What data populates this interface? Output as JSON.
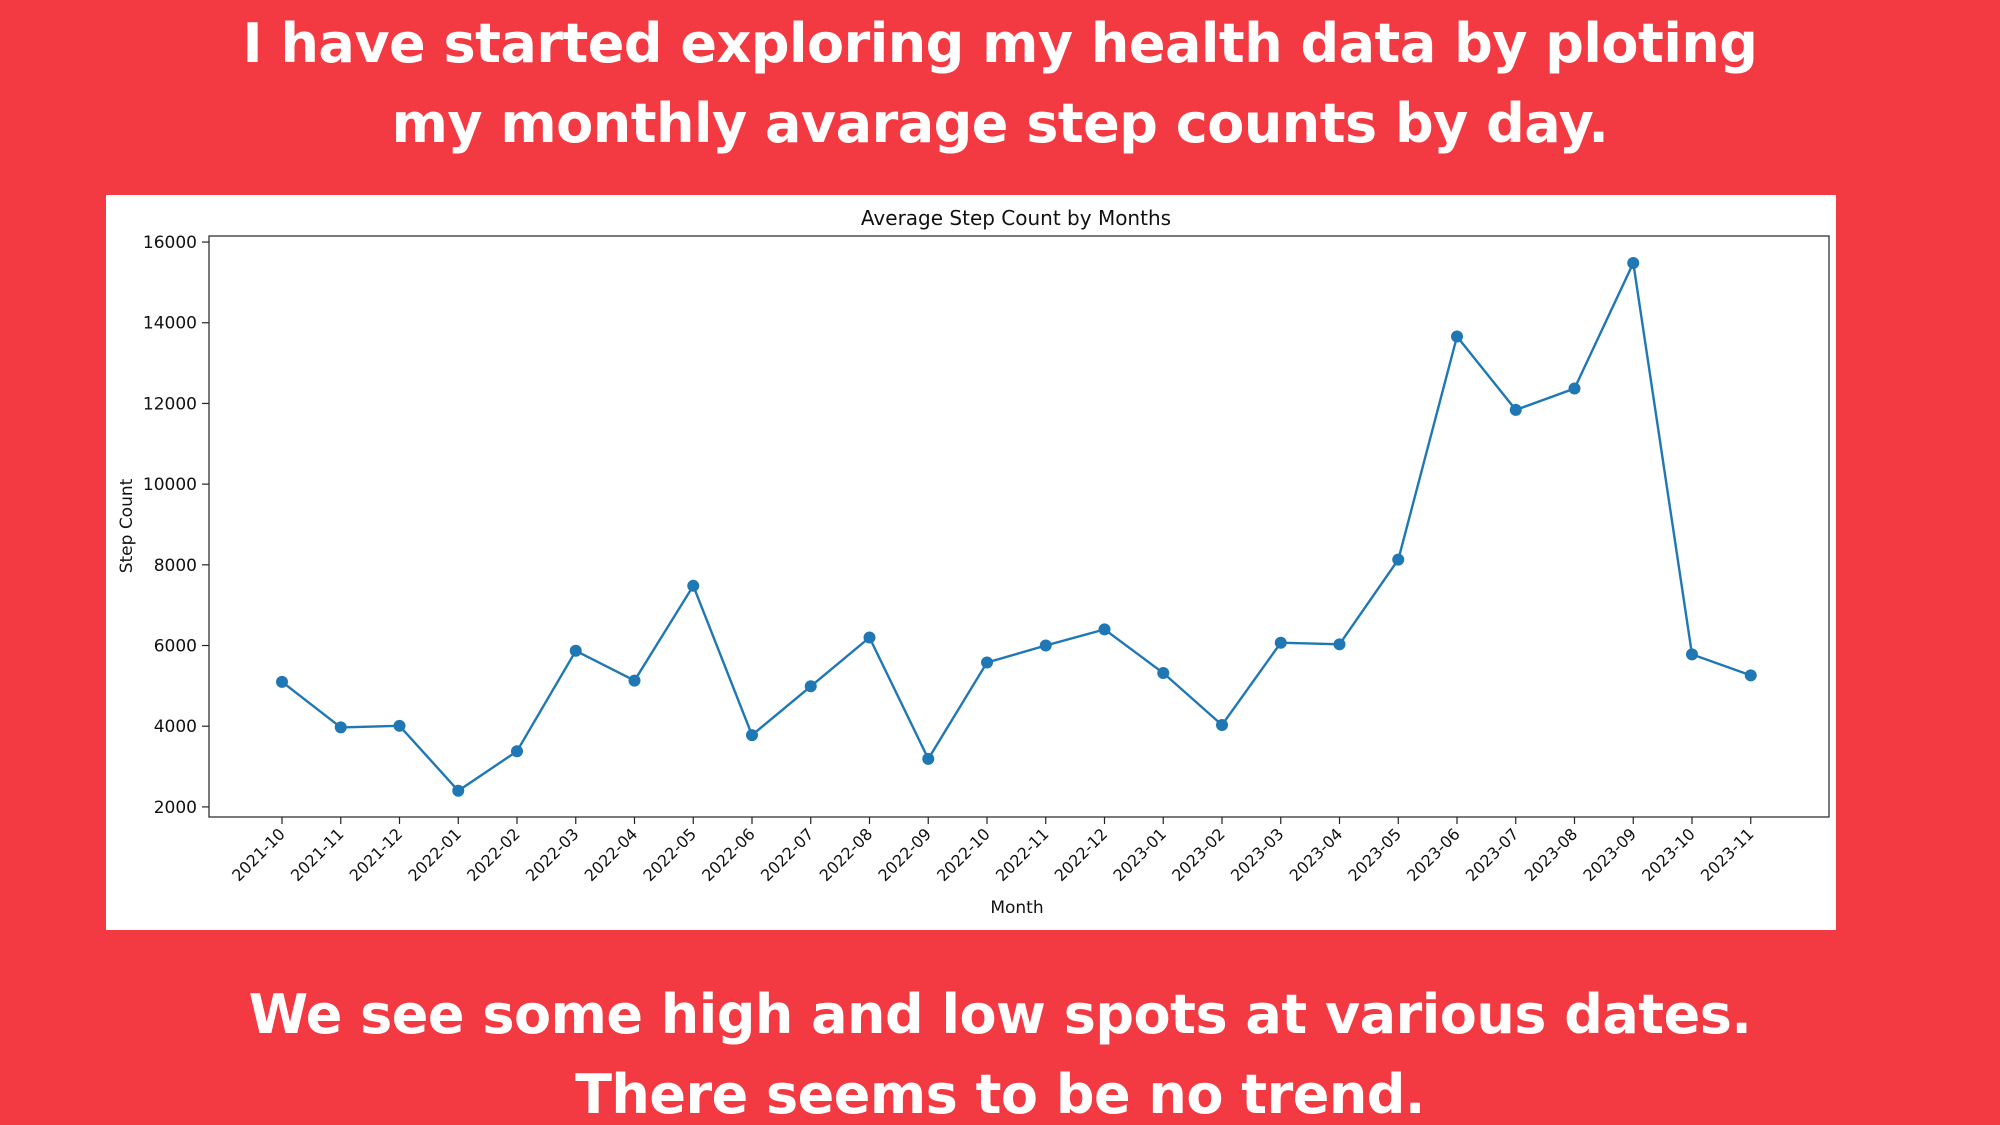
{
  "headline_top": {
    "line1": "I have started exploring my health data by ploting",
    "line2": "my monthly avarage step counts by day."
  },
  "headline_bottom": {
    "line1": "We see some high and low spots at various dates.",
    "line2": "There seems to be no trend."
  },
  "colors": {
    "background": "#f33a42",
    "headline_text": "#ffffff",
    "chart_panel": "#ffffff",
    "series_line": "#1f77b4"
  },
  "chart_data": {
    "type": "line",
    "title": "Average Step Count by Months",
    "xlabel": "Month",
    "ylabel": "Step Count",
    "categories": [
      "2021-10",
      "2021-11",
      "2021-12",
      "2022-01",
      "2022-02",
      "2022-03",
      "2022-04",
      "2022-05",
      "2022-06",
      "2022-07",
      "2022-08",
      "2022-09",
      "2022-10",
      "2022-11",
      "2022-12",
      "2023-01",
      "2023-02",
      "2023-03",
      "2023-04",
      "2023-05",
      "2023-06",
      "2023-07",
      "2023-08",
      "2023-09",
      "2023-10",
      "2023-11"
    ],
    "series": [
      {
        "values": [
          5100,
          3970,
          4010,
          2400,
          3380,
          5870,
          5130,
          7480,
          3780,
          4990,
          6200,
          3190,
          5580,
          6000,
          6400,
          5320,
          4030,
          6070,
          6030,
          8130,
          13660,
          11840,
          12370,
          15480,
          5780,
          5260
        ],
        "marker": "circle"
      }
    ],
    "yticks": [
      2000,
      4000,
      6000,
      8000,
      10000,
      12000,
      14000,
      16000
    ],
    "ylim": [
      1750,
      16150
    ],
    "grid": false,
    "legend": "none"
  }
}
